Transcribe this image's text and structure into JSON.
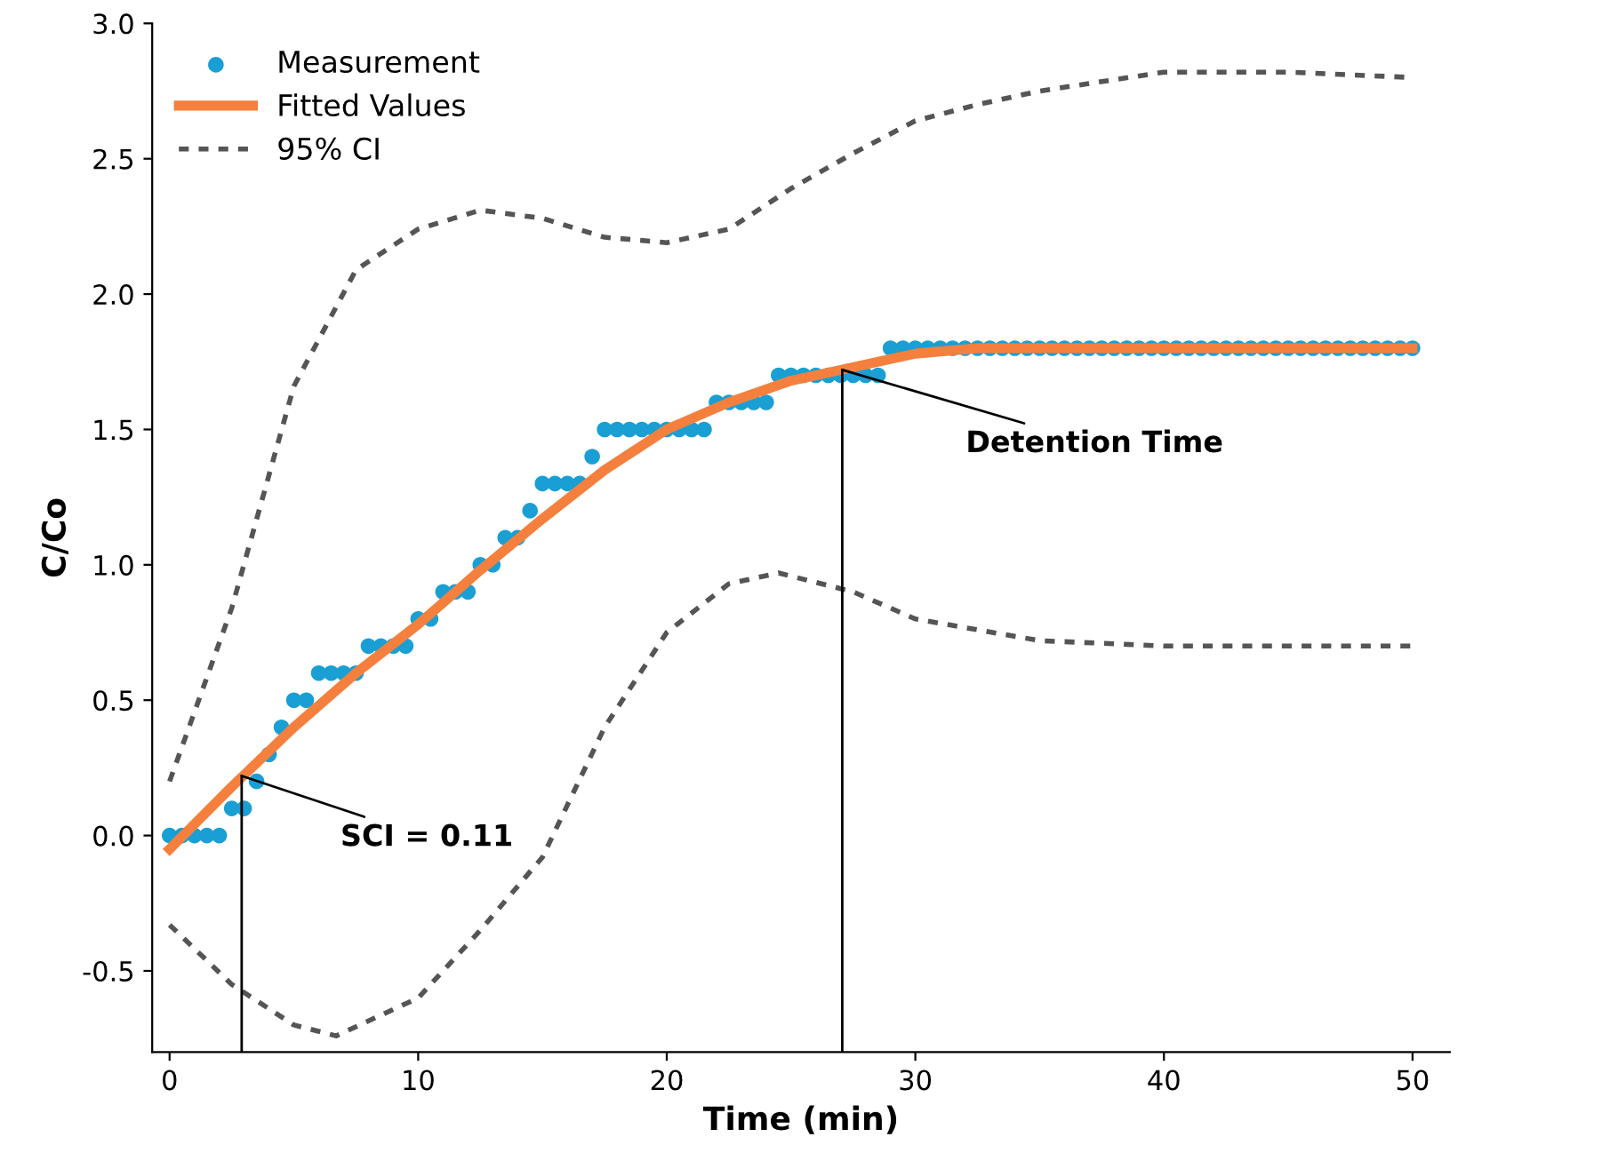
{
  "chart_data": {
    "type": "scatter",
    "xlabel": "Time (min)",
    "ylabel": "C/Co",
    "xlim": [
      -0.7,
      51.5
    ],
    "ylim": [
      -0.8,
      3.0
    ],
    "xticks": [
      0,
      10,
      20,
      30,
      40,
      50
    ],
    "yticks": [
      -0.5,
      {
        "value": 0,
        "label": "0.0"
      },
      0.5,
      {
        "value": 1,
        "label": "1.0"
      },
      1.5,
      {
        "value": 2,
        "label": "2.0"
      },
      2.5,
      {
        "value": 3,
        "label": "3.0"
      }
    ],
    "grid": false,
    "legend": "top left",
    "series": [
      {
        "name": "Measurement",
        "marker": "circle",
        "color": "#1a9fd4",
        "x": [
          0,
          0.5,
          1,
          1.5,
          2,
          2.5,
          3,
          3.5,
          4,
          4.5,
          5,
          5.5,
          6,
          6.5,
          7,
          7.5,
          8,
          8.5,
          9,
          9.5,
          10,
          10.5,
          11,
          11.5,
          12,
          12.5,
          13,
          13.5,
          14,
          14.5,
          15,
          15.5,
          16,
          16.5,
          17,
          17.5,
          18,
          18.5,
          19,
          19.5,
          20,
          20.5,
          21,
          21.5,
          22,
          22.5,
          23,
          23.5,
          24,
          24.5,
          25,
          25.5,
          26,
          26.5,
          27,
          27.5,
          28,
          28.5,
          29,
          29.5,
          30,
          30.5,
          31,
          31.5,
          32,
          32.5,
          33,
          33.5,
          34,
          34.5,
          35,
          35.5,
          36,
          36.5,
          37,
          37.5,
          38,
          38.5,
          39,
          39.5,
          40,
          40.5,
          41,
          41.5,
          42,
          42.5,
          43,
          43.5,
          44,
          44.5,
          45,
          45.5,
          46,
          46.5,
          47,
          47.5,
          48,
          48.5,
          49,
          49.5,
          50
        ],
        "values": [
          0,
          0,
          0,
          0,
          0,
          0.1,
          0.1,
          0.2,
          0.3,
          0.4,
          0.5,
          0.5,
          0.6,
          0.6,
          0.6,
          0.6,
          0.7,
          0.7,
          0.7,
          0.7,
          0.8,
          0.8,
          0.9,
          0.9,
          0.9,
          1.0,
          1.0,
          1.1,
          1.1,
          1.2,
          1.3,
          1.3,
          1.3,
          1.3,
          1.4,
          1.5,
          1.5,
          1.5,
          1.5,
          1.5,
          1.5,
          1.5,
          1.5,
          1.5,
          1.6,
          1.6,
          1.6,
          1.6,
          1.6,
          1.7,
          1.7,
          1.7,
          1.7,
          1.7,
          1.7,
          1.7,
          1.7,
          1.7,
          1.8,
          1.8,
          1.8,
          1.8,
          1.8,
          1.8,
          1.8,
          1.8,
          1.8,
          1.8,
          1.8,
          1.8,
          1.8,
          1.8,
          1.8,
          1.8,
          1.8,
          1.8,
          1.8,
          1.8,
          1.8,
          1.8,
          1.8,
          1.8,
          1.8,
          1.8,
          1.8,
          1.8,
          1.8,
          1.8,
          1.8,
          1.8,
          1.8,
          1.8,
          1.8,
          1.8,
          1.8,
          1.8,
          1.8,
          1.8,
          1.8,
          1.8,
          1.8
        ]
      },
      {
        "name": "Fitted Values",
        "type": "line",
        "color": "#f5803e",
        "line_style": "solid",
        "x": [
          0,
          2.5,
          5,
          7.5,
          10,
          12.5,
          15,
          17.5,
          20,
          22.5,
          25,
          27.5,
          30,
          32.5,
          35,
          40,
          45,
          50
        ],
        "values": [
          -0.05,
          0.18,
          0.4,
          0.6,
          0.78,
          0.98,
          1.17,
          1.35,
          1.5,
          1.6,
          1.68,
          1.73,
          1.78,
          1.8,
          1.8,
          1.8,
          1.8,
          1.8
        ]
      },
      {
        "name": "95% CI",
        "type": "line",
        "color": "#555555",
        "line_style": "dashed",
        "x": [
          0,
          2.5,
          5,
          7.5,
          10,
          12.5,
          15,
          17.5,
          20,
          22.5,
          25,
          27.5,
          30,
          32.5,
          35,
          40,
          45,
          50
        ],
        "values": [
          0.2,
          0.84,
          1.66,
          2.09,
          2.24,
          2.31,
          2.28,
          2.21,
          2.19,
          2.24,
          2.39,
          2.52,
          2.64,
          2.7,
          2.75,
          2.82,
          2.82,
          2.8
        ]
      },
      {
        "type": "line",
        "color": "#555555",
        "line_style": "dashed",
        "x": [
          0,
          2.5,
          5,
          6.7,
          10,
          12.5,
          15,
          17.5,
          20,
          22.5,
          24.5,
          27.5,
          30,
          35,
          40,
          45,
          50
        ],
        "values": [
          -0.33,
          -0.55,
          -0.7,
          -0.74,
          -0.6,
          -0.35,
          -0.08,
          0.4,
          0.75,
          0.93,
          0.97,
          0.9,
          0.8,
          0.72,
          0.7,
          0.7,
          0.7
        ]
      },
      {
        "type": "line",
        "color": "#000000",
        "line_style": "solid",
        "x": [
          2.9,
          2.9
        ],
        "values": [
          -0.8,
          0.22
        ]
      },
      {
        "type": "line",
        "color": "#000000",
        "line_style": "solid",
        "x": [
          27.06,
          27.06
        ],
        "values": [
          -0.8,
          1.72
        ]
      }
    ],
    "annotations": [
      {
        "text": "SCI = 0.11",
        "x": 2.9,
        "y": 0.22
      },
      {
        "text": "Detention Time",
        "x": 27.06,
        "y": 1.72
      }
    ]
  }
}
